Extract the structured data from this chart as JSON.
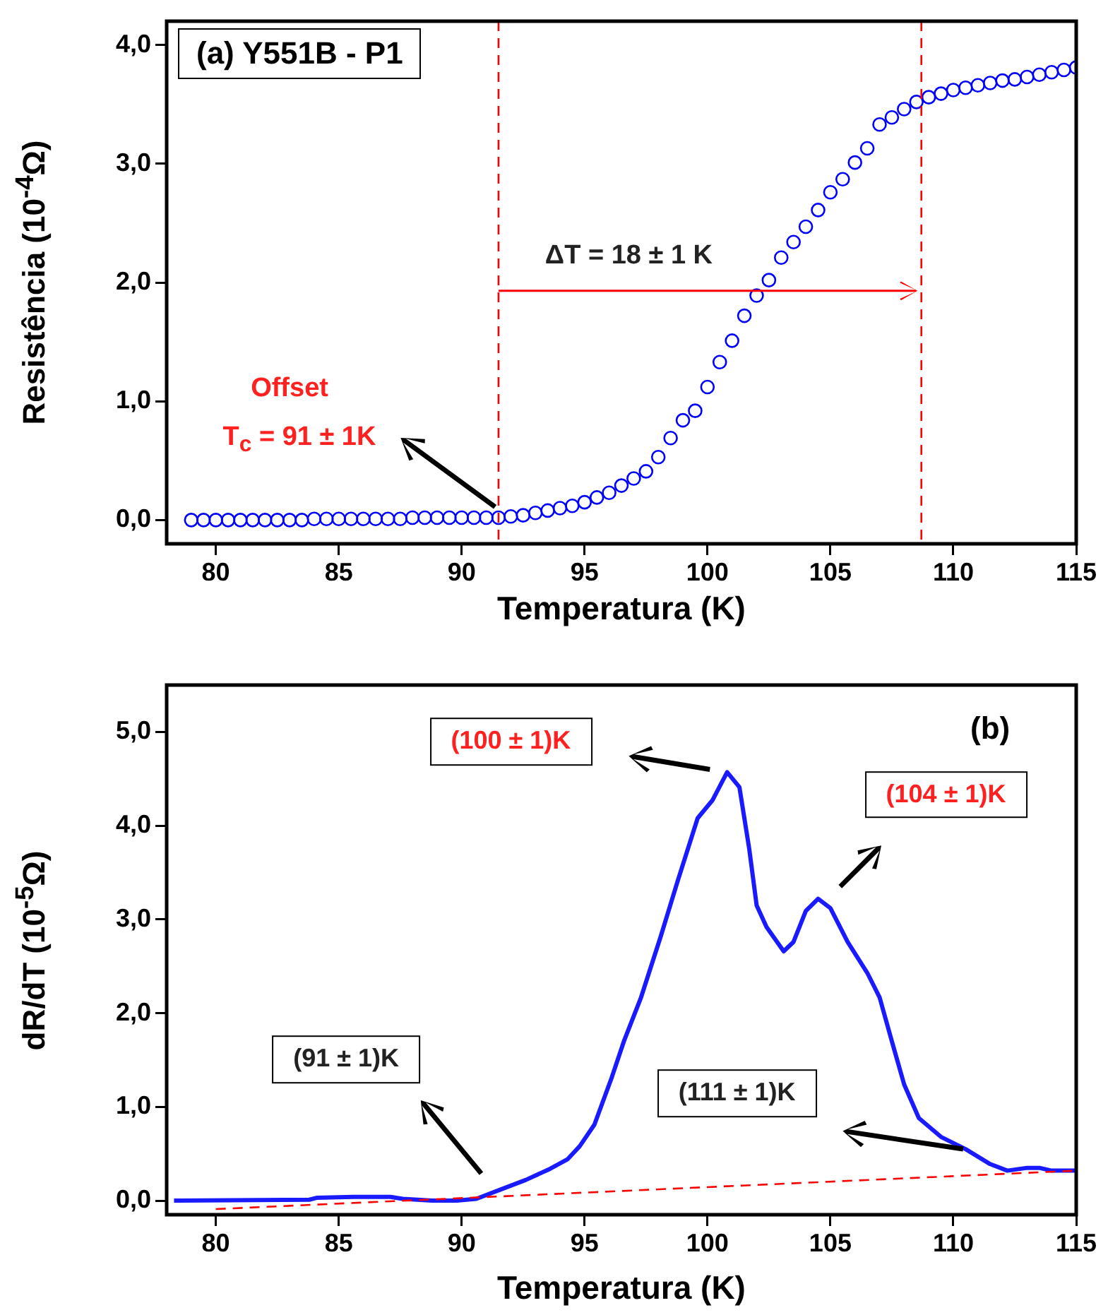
{
  "chart_data": [
    {
      "type": "scatter",
      "title": "(a) Y551B - P1",
      "xlabel": "Temperatura (K)",
      "ylabel": "Resistência (10$^{-4}$Ω)",
      "marker": "circle",
      "xlim": [
        78,
        115
      ],
      "xticks": [
        80,
        85,
        90,
        95,
        100,
        105,
        110,
        115
      ],
      "ylim": [
        -0.2,
        4.2
      ],
      "yticks": [
        {
          "value": 0,
          "label": "0,0"
        },
        {
          "value": 1,
          "label": "1,0"
        },
        {
          "value": 2,
          "label": "2,0"
        },
        {
          "value": 3,
          "label": "3,0"
        },
        {
          "value": 4,
          "label": "4,0"
        }
      ],
      "x": [
        79,
        79.5,
        80,
        80.5,
        81,
        81.5,
        82,
        82.5,
        83,
        83.5,
        84,
        84.5,
        85,
        85.5,
        86,
        86.5,
        87,
        87.5,
        88,
        88.5,
        89,
        89.5,
        90,
        90.5,
        91,
        91.5,
        92,
        92.5,
        93,
        93.5,
        94,
        94.5,
        95,
        95.5,
        96,
        96.5,
        97,
        97.5,
        98,
        98.5,
        99,
        99.5,
        100,
        100.5,
        101,
        101.5,
        102,
        102.5,
        103,
        103.5,
        104,
        104.5,
        105,
        105.5,
        106,
        106.5,
        107,
        107.5,
        108,
        108.5,
        109,
        109.5,
        110,
        110.5,
        111,
        111.5,
        112,
        112.5,
        113,
        113.5,
        114,
        114.5,
        115
      ],
      "series": [
        {
          "color": "#0000ff",
          "values": [
            0,
            0,
            0,
            0,
            0,
            0,
            0,
            0,
            0,
            0,
            0.01,
            0.01,
            0.01,
            0.01,
            0.01,
            0.01,
            0.01,
            0.01,
            0.02,
            0.02,
            0.02,
            0.02,
            0.02,
            0.02,
            0.02,
            0.02,
            0.03,
            0.04,
            0.06,
            0.08,
            0.1,
            0.12,
            0.15,
            0.19,
            0.23,
            0.29,
            0.35,
            0.41,
            0.53,
            0.69,
            0.84,
            0.92,
            1.12,
            1.33,
            1.51,
            1.72,
            1.89,
            2.02,
            2.21,
            2.34,
            2.47,
            2.61,
            2.76,
            2.87,
            3.01,
            3.13,
            3.33,
            3.39,
            3.46,
            3.52,
            3.56,
            3.59,
            3.62,
            3.64,
            3.66,
            3.68,
            3.7,
            3.71,
            3.73,
            3.75,
            3.77,
            3.79,
            3.81
          ]
        }
      ],
      "ref_lines": [
        {
          "axis": "x",
          "value": 91.5,
          "color": "#ff0000",
          "line_style": "dashed"
        },
        {
          "axis": "x",
          "value": 108.7,
          "color": "#ff0000",
          "line_style": "dashed"
        }
      ],
      "annotations": [
        "Offset",
        "T$_{c}$ = 91 ± 1K",
        "ΔT = 18 ± 1 K"
      ]
    },
    {
      "type": "line",
      "title": "(b)",
      "xlabel": "Temperatura (K)",
      "ylabel": "dR/dT (10$^{-5}$Ω)",
      "xlim": [
        78,
        115
      ],
      "xticks": [
        80,
        85,
        90,
        95,
        100,
        105,
        110,
        115
      ],
      "ylim": [
        -0.15,
        5.5
      ],
      "yticks": [
        {
          "value": 0,
          "label": "0,0"
        },
        {
          "value": 1,
          "label": "1,0"
        },
        {
          "value": 2,
          "label": "2,0"
        },
        {
          "value": 3,
          "label": "3,0"
        },
        {
          "value": 4,
          "label": "4,0"
        },
        {
          "value": 5,
          "label": "5,0"
        }
      ],
      "series": [
        {
          "color": "#1a1aff",
          "x": [
            78.3,
            83.8,
            84.1,
            85.6,
            87.1,
            87.6,
            88.8,
            89.8,
            90.6,
            91.6,
            92.6,
            93.6,
            94.3,
            94.8,
            95.4,
            96.1,
            96.6,
            97.3,
            98.1,
            98.8,
            99.6,
            100.2,
            100.8,
            101.3,
            101.7,
            102.0,
            102.4,
            103.1,
            103.5,
            104.0,
            104.5,
            105.0,
            105.7,
            106.5,
            107.0,
            107.5,
            108.0,
            108.6,
            109.5,
            110.5,
            111.5,
            112.2,
            113.0,
            113.5,
            114.0,
            115.0
          ],
          "values": [
            0.0,
            0.01,
            0.03,
            0.04,
            0.04,
            0.02,
            0.0,
            0.0,
            0.02,
            0.12,
            0.22,
            0.34,
            0.44,
            0.58,
            0.81,
            1.31,
            1.7,
            2.17,
            2.82,
            3.42,
            4.08,
            4.27,
            4.57,
            4.41,
            3.75,
            3.15,
            2.92,
            2.66,
            2.76,
            3.09,
            3.22,
            3.12,
            2.76,
            2.43,
            2.17,
            1.7,
            1.24,
            0.88,
            0.68,
            0.55,
            0.39,
            0.32,
            0.35,
            0.35,
            0.32,
            0.32
          ]
        },
        {
          "color": "#ff0000",
          "line_style": "dashed",
          "x": [
            80,
            115
          ],
          "values": [
            -0.09,
            0.32
          ]
        }
      ],
      "annotations": [
        "(100 ± 1)K",
        "(104 ± 1)K",
        "(91 ± 1)K",
        "(111 ± 1)K"
      ]
    }
  ]
}
